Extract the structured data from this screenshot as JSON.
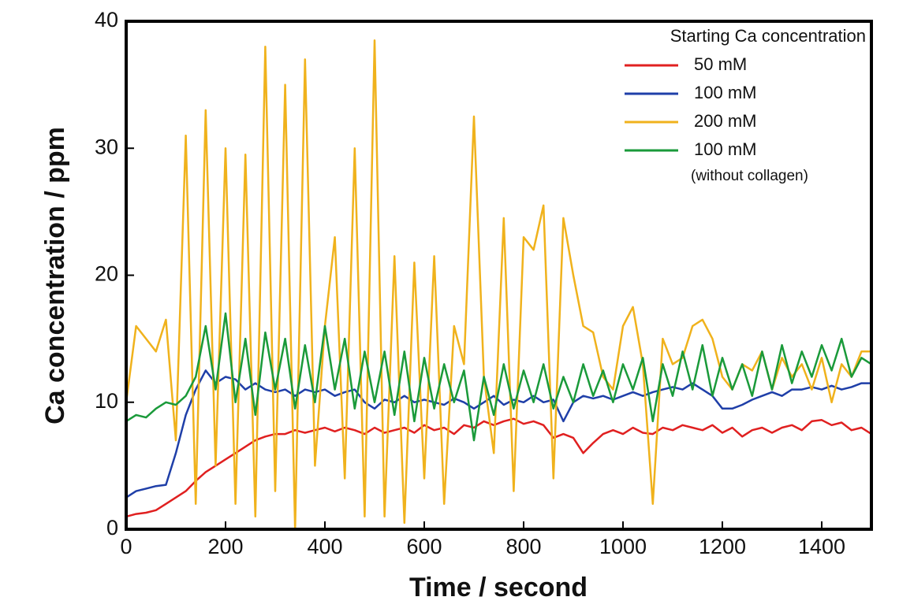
{
  "chart_data": {
    "type": "line",
    "xlabel": "Time / second",
    "ylabel": "Ca concentration / ppm",
    "legend_title": "Starting Ca concentration",
    "legend_position": "upper right",
    "xlim": [
      0,
      1500
    ],
    "ylim": [
      0,
      40
    ],
    "xticks": [
      0,
      200,
      400,
      600,
      800,
      1000,
      1200,
      1400
    ],
    "yticks": [
      0,
      10,
      20,
      30,
      40
    ],
    "grid": false,
    "x": [
      0,
      20,
      40,
      60,
      80,
      100,
      120,
      140,
      160,
      180,
      200,
      220,
      240,
      260,
      280,
      300,
      320,
      340,
      360,
      380,
      400,
      420,
      440,
      460,
      480,
      500,
      520,
      540,
      560,
      580,
      600,
      620,
      640,
      660,
      680,
      700,
      720,
      740,
      760,
      780,
      800,
      820,
      840,
      860,
      880,
      900,
      920,
      940,
      960,
      980,
      1000,
      1020,
      1040,
      1060,
      1080,
      1100,
      1120,
      1140,
      1160,
      1180,
      1200,
      1220,
      1240,
      1260,
      1280,
      1300,
      1320,
      1340,
      1360,
      1380,
      1400,
      1420,
      1440,
      1460,
      1480,
      1500
    ],
    "series": [
      {
        "name": "50 mM",
        "color": "#e02020",
        "values": [
          1,
          1.2,
          1.3,
          1.5,
          2,
          2.5,
          3,
          3.8,
          4.5,
          5,
          5.5,
          6,
          6.5,
          7,
          7.3,
          7.5,
          7.5,
          7.8,
          7.6,
          7.8,
          8,
          7.7,
          8,
          7.8,
          7.5,
          8,
          7.6,
          7.8,
          8,
          7.6,
          8.2,
          7.8,
          8,
          7.5,
          8.2,
          8,
          8.5,
          8.2,
          8.5,
          8.7,
          8.3,
          8.5,
          8.2,
          7.2,
          7.5,
          7.2,
          6,
          6.8,
          7.5,
          7.8,
          7.5,
          8,
          7.6,
          7.5,
          8,
          7.8,
          8.2,
          8,
          7.8,
          8.2,
          7.6,
          8,
          7.3,
          7.8,
          8,
          7.6,
          8,
          8.2,
          7.8,
          8.5,
          8.6,
          8.2,
          8.4,
          7.8,
          8,
          7.5
        ]
      },
      {
        "name": "100 mM",
        "color": "#1f3fa8",
        "values": [
          2.5,
          3,
          3.2,
          3.4,
          3.5,
          6,
          9,
          11,
          12.5,
          11.5,
          12,
          11.8,
          11,
          11.5,
          11,
          10.8,
          11,
          10.5,
          11,
          10.8,
          11,
          10.5,
          10.8,
          11,
          10,
          9.5,
          10.2,
          10,
          10.5,
          10,
          10.2,
          10,
          9.8,
          10.3,
          10,
          9.5,
          10,
          10.5,
          9.8,
          10.2,
          10,
          10.5,
          10,
          10.2,
          8.5,
          10,
          10.5,
          10.3,
          10.5,
          10.2,
          10.5,
          10.8,
          10.5,
          10.8,
          11,
          11.2,
          11,
          11.5,
          11,
          10.5,
          9.5,
          9.5,
          9.8,
          10.2,
          10.5,
          10.8,
          10.5,
          11,
          11,
          11.2,
          11,
          11.3,
          11,
          11.2,
          11.5,
          11.5
        ]
      },
      {
        "name": "200 mM",
        "color": "#f0b21c",
        "values": [
          10,
          16,
          15,
          14,
          16.5,
          7,
          31,
          2,
          33,
          5,
          30,
          2,
          29.5,
          1,
          38,
          3,
          35,
          0,
          37,
          5,
          16,
          23,
          4,
          30,
          1,
          38.5,
          1,
          21.5,
          0.5,
          21,
          4,
          21.5,
          2,
          16,
          13,
          32.5,
          12,
          6,
          24.5,
          3,
          23,
          22,
          25.5,
          4,
          24.5,
          20,
          16,
          15.5,
          12,
          11,
          16,
          17.5,
          13,
          2,
          15,
          13,
          13.5,
          16,
          16.5,
          15,
          12,
          11,
          13,
          12.5,
          14,
          11,
          13.5,
          12,
          13,
          11,
          13.5,
          10,
          13,
          12,
          14,
          14
        ]
      },
      {
        "name": "100 mM",
        "sublabel": "(without collagen)",
        "color": "#1a9a3a",
        "values": [
          8.5,
          9,
          8.8,
          9.5,
          10,
          9.8,
          10.5,
          12,
          16,
          11,
          17,
          10,
          15,
          9,
          15.5,
          11,
          15,
          9.5,
          14.5,
          10,
          16,
          11,
          15,
          9.5,
          14,
          10,
          14,
          9,
          14,
          8.5,
          13.5,
          9.5,
          13,
          10,
          12.5,
          7,
          12,
          9,
          13,
          9.5,
          12.5,
          10,
          13,
          9.5,
          12,
          10,
          13,
          10.5,
          12.5,
          10,
          13,
          11,
          13.5,
          8.5,
          13,
          10.5,
          14,
          11,
          14.5,
          10.5,
          13.5,
          11,
          13,
          10.5,
          14,
          11,
          14.5,
          11.5,
          14,
          12,
          14.5,
          12.5,
          15,
          12,
          13.5,
          13
        ]
      }
    ]
  }
}
